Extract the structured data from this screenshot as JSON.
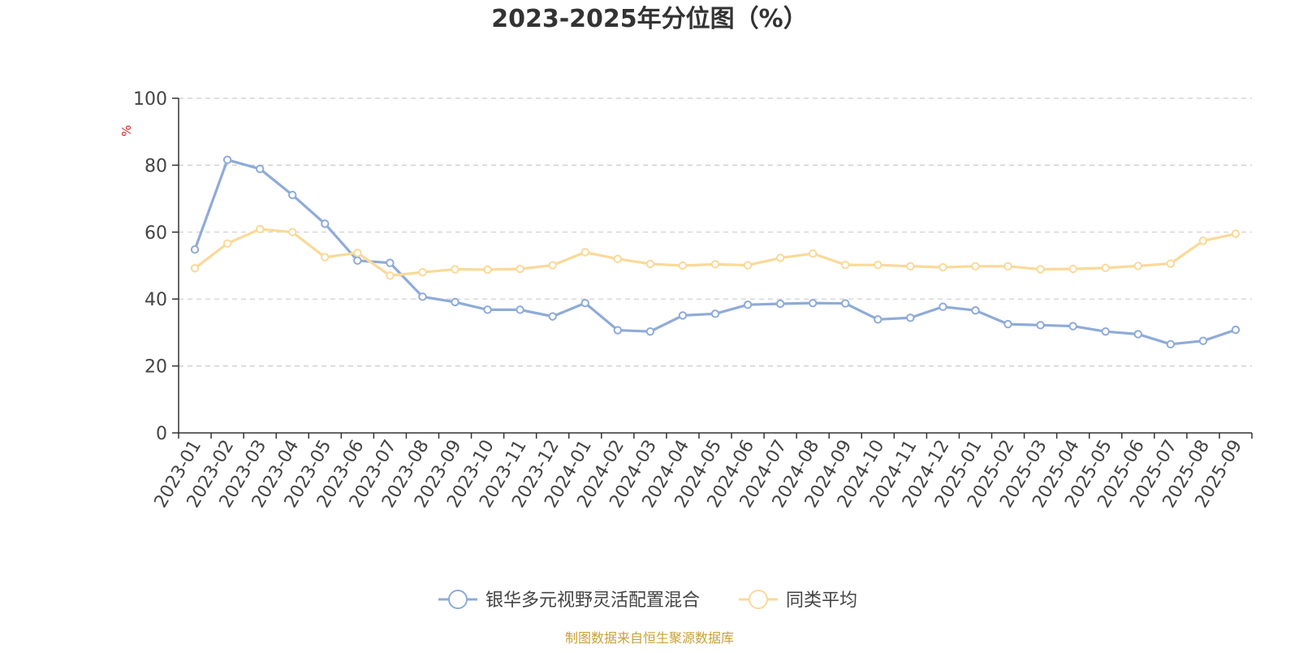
{
  "chart_data": {
    "type": "line",
    "title": "2023-2025年分位图（%）",
    "ylabel": "%",
    "xlabel": "",
    "ylim": [
      0,
      100
    ],
    "yticks": [
      0,
      20,
      40,
      60,
      80,
      100
    ],
    "grid": true,
    "legend_position": "bottom-center",
    "categories": [
      "2023-01",
      "2023-02",
      "2023-03",
      "2023-04",
      "2023-05",
      "2023-06",
      "2023-07",
      "2023-08",
      "2023-09",
      "2023-10",
      "2023-11",
      "2023-12",
      "2024-01",
      "2024-02",
      "2024-03",
      "2024-04",
      "2024-05",
      "2024-06",
      "2024-07",
      "2024-08",
      "2024-09",
      "2024-10",
      "2024-11",
      "2024-12",
      "2025-01",
      "2025-02",
      "2025-03",
      "2025-04",
      "2025-05",
      "2025-06",
      "2025-07",
      "2025-08",
      "2025-09"
    ],
    "series": [
      {
        "name": "银华多元视野灵活配置混合",
        "color": "#8eabd8",
        "values": [
          54.8,
          81.6,
          78.9,
          71.1,
          62.5,
          51.5,
          50.8,
          40.7,
          39.1,
          36.8,
          36.8,
          34.8,
          38.8,
          30.7,
          30.3,
          35.1,
          35.6,
          38.3,
          38.6,
          38.8,
          38.7,
          33.9,
          34.4,
          37.7,
          36.6,
          32.5,
          32.2,
          31.9,
          30.3,
          29.5,
          26.5,
          27.5,
          30.8
        ]
      },
      {
        "name": "同类平均",
        "color": "#fad998",
        "values": [
          49.2,
          56.6,
          60.9,
          60.0,
          52.5,
          53.8,
          47.0,
          48.0,
          48.9,
          48.8,
          49.0,
          50.1,
          54.0,
          52.0,
          50.5,
          50.0,
          50.4,
          50.1,
          52.3,
          53.6,
          50.2,
          50.2,
          49.8,
          49.5,
          49.8,
          49.8,
          48.9,
          49.0,
          49.3,
          49.9,
          50.6,
          57.4,
          59.5
        ]
      }
    ]
  },
  "footer": {
    "source": "制图数据来自恒生聚源数据库",
    "source_color": "#c8a03a"
  },
  "colors": {
    "axis": "#333333",
    "grid": "#cccccc",
    "ylabel": "#e02020",
    "text": "#444444"
  }
}
